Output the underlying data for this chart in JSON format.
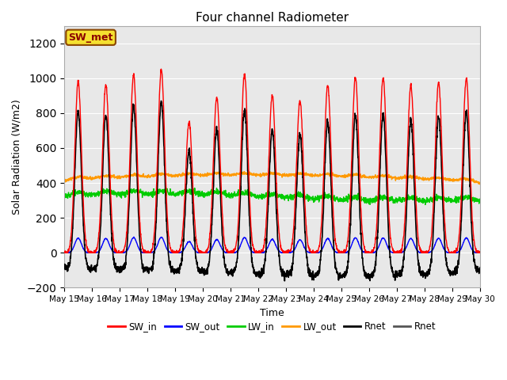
{
  "title": "Four channel Radiometer",
  "xlabel": "Time",
  "ylabel": "Solar Radiation (W/m2)",
  "ylim": [
    -200,
    1300
  ],
  "yticks": [
    -200,
    0,
    200,
    400,
    600,
    800,
    1000,
    1200
  ],
  "start_day": 15,
  "end_day": 30,
  "n_days": 15,
  "annotation_text": "SW_met",
  "legend_entries": [
    "SW_in",
    "SW_out",
    "LW_in",
    "LW_out",
    "Rnet",
    "Rnet"
  ],
  "colors": {
    "SW_in": "#ff0000",
    "SW_out": "#0000ff",
    "LW_in": "#00cc00",
    "LW_out": "#ff9900",
    "Rnet_black": "#000000",
    "Rnet_dark": "#555555"
  },
  "plot_bg": "#e8e8e8",
  "grid_color": "#ffffff"
}
